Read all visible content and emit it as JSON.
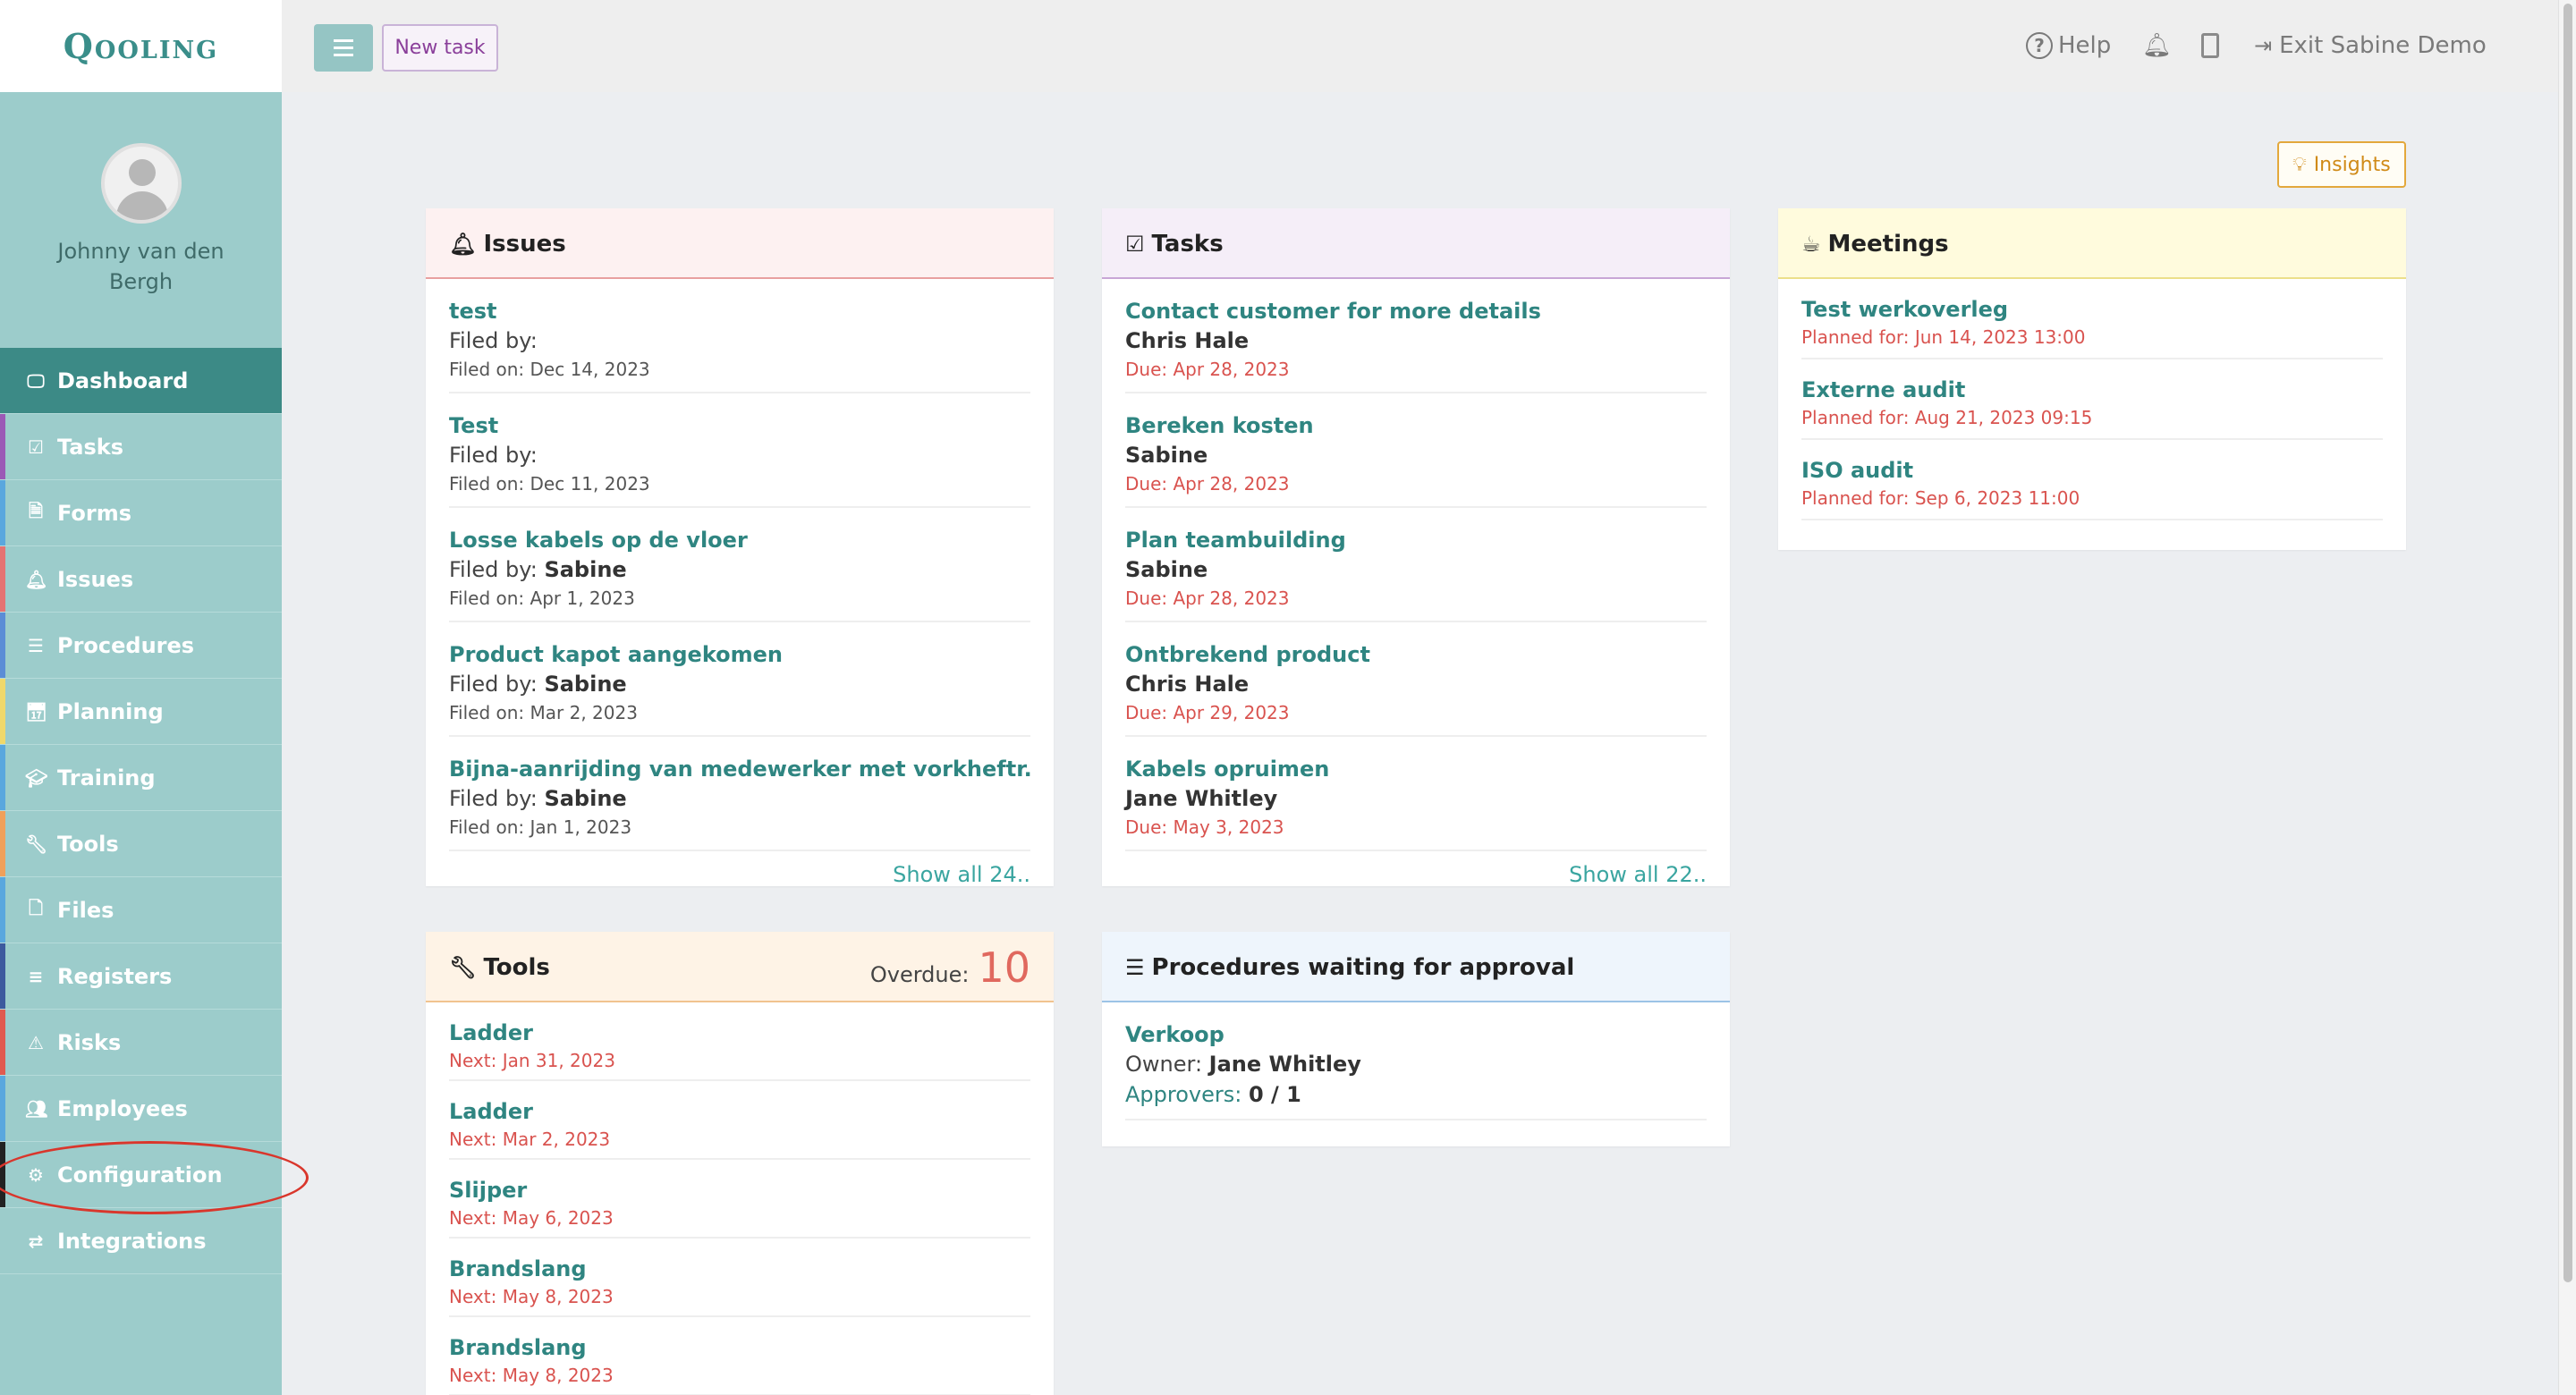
{
  "app": {
    "logo": "Qooling"
  },
  "user": {
    "name": "Johnny van den Bergh"
  },
  "nav": {
    "items": [
      {
        "label": "Dashboard",
        "icon": "monitor-icon",
        "glyph": "🖵",
        "stripe": "#3c8a86",
        "active": true
      },
      {
        "label": "Tasks",
        "icon": "check-square-icon",
        "glyph": "☑",
        "stripe": "#9b59b6",
        "active": false
      },
      {
        "label": "Forms",
        "icon": "document-icon",
        "glyph": "🗎",
        "stripe": "#5aa7de",
        "active": false
      },
      {
        "label": "Issues",
        "icon": "bell-icon",
        "glyph": "🔔",
        "stripe": "#e57373",
        "active": false
      },
      {
        "label": "Procedures",
        "icon": "list-icon",
        "glyph": "☰",
        "stripe": "#5b8dd6",
        "active": false
      },
      {
        "label": "Planning",
        "icon": "calendar-icon",
        "glyph": "📅",
        "stripe": "#f0d86b",
        "active": false
      },
      {
        "label": "Training",
        "icon": "graduation-cap-icon",
        "glyph": "🎓",
        "stripe": "#5aa7de",
        "active": false
      },
      {
        "label": "Tools",
        "icon": "wrench-icon",
        "glyph": "🔧",
        "stripe": "#f0a05a",
        "active": false
      },
      {
        "label": "Files",
        "icon": "file-icon",
        "glyph": "🗋",
        "stripe": "#5aa7de",
        "active": false
      },
      {
        "label": "Registers",
        "icon": "register-list-icon",
        "glyph": "≡",
        "stripe": "#3d5a9e",
        "active": false
      },
      {
        "label": "Risks",
        "icon": "warning-icon",
        "glyph": "⚠",
        "stripe": "#e05a4f",
        "active": false
      },
      {
        "label": "Employees",
        "icon": "users-icon",
        "glyph": "👥",
        "stripe": "#5aa7de",
        "active": false
      },
      {
        "label": "Configuration",
        "icon": "gear-icon",
        "glyph": "⚙",
        "stripe": "#222222",
        "active": false
      },
      {
        "label": "Integrations",
        "icon": "exchange-icon",
        "glyph": "⇄",
        "stripe": "#9ccccb",
        "active": false
      }
    ]
  },
  "topbar": {
    "new_task": "New task",
    "help": "Help",
    "exit": "Exit Sabine Demo"
  },
  "insights": {
    "label": "Insights"
  },
  "issues": {
    "title": "Issues",
    "items": [
      {
        "title": "test",
        "filed_by_label": "Filed by:",
        "filed_by": "",
        "filed_on": "Filed on: Dec 14, 2023"
      },
      {
        "title": "Test",
        "filed_by_label": "Filed by:",
        "filed_by": "",
        "filed_on": "Filed on: Dec 11, 2023"
      },
      {
        "title": "Losse kabels op de vloer",
        "filed_by_label": "Filed by:",
        "filed_by": "Sabine",
        "filed_on": "Filed on: Apr 1, 2023"
      },
      {
        "title": "Product kapot aangekomen",
        "filed_by_label": "Filed by:",
        "filed_by": "Sabine",
        "filed_on": "Filed on: Mar 2, 2023"
      },
      {
        "title": "Bijna-aanrijding van medewerker met vorkheftr..",
        "filed_by_label": "Filed by:",
        "filed_by": "Sabine",
        "filed_on": "Filed on: Jan 1, 2023"
      }
    ],
    "show_all": "Show all 24.."
  },
  "tasks": {
    "title": "Tasks",
    "items": [
      {
        "title": "Contact customer for more details",
        "person": "Chris Hale",
        "due": "Due: Apr 28, 2023"
      },
      {
        "title": "Bereken kosten",
        "person": "Sabine",
        "due": "Due: Apr 28, 2023"
      },
      {
        "title": "Plan teambuilding",
        "person": "Sabine",
        "due": "Due: Apr 28, 2023"
      },
      {
        "title": "Ontbrekend product",
        "person": "Chris Hale",
        "due": "Due: Apr 29, 2023"
      },
      {
        "title": "Kabels opruimen",
        "person": "Jane Whitley",
        "due": "Due: May 3, 2023"
      }
    ],
    "show_all": "Show all 22.."
  },
  "meetings": {
    "title": "Meetings",
    "items": [
      {
        "title": "Test werkoverleg",
        "planned": "Planned for: Jun 14, 2023 13:00"
      },
      {
        "title": "Externe audit",
        "planned": "Planned for: Aug 21, 2023 09:15"
      },
      {
        "title": "ISO audit",
        "planned": "Planned for: Sep 6, 2023 11:00"
      }
    ]
  },
  "tools": {
    "title": "Tools",
    "overdue_label": "Overdue:",
    "overdue_count": "10",
    "items": [
      {
        "title": "Ladder",
        "next": "Next: Jan 31, 2023"
      },
      {
        "title": "Ladder",
        "next": "Next: Mar 2, 2023"
      },
      {
        "title": "Slijper",
        "next": "Next: May 6, 2023"
      },
      {
        "title": "Brandslang",
        "next": "Next: May 8, 2023"
      },
      {
        "title": "Brandslang",
        "next": "Next: May 8, 2023"
      }
    ]
  },
  "procedures": {
    "title": "Procedures waiting for approval",
    "items": [
      {
        "title": "Verkoop",
        "owner_label": "Owner:",
        "owner": "Jane Whitley",
        "approvers_label": "Approvers:",
        "approvers": "0 / 1"
      }
    ]
  },
  "colors": {
    "sidebar": "#9ccccb",
    "active_nav": "#3c8a86",
    "link": "#2f8581",
    "date_red": "#d9534f",
    "issues_header": "#fdf1f1",
    "tasks_header": "#f5eef8",
    "meetings_header": "#fffbdd",
    "tools_header": "#fef3e6",
    "procedures_header": "#eef5fc"
  }
}
